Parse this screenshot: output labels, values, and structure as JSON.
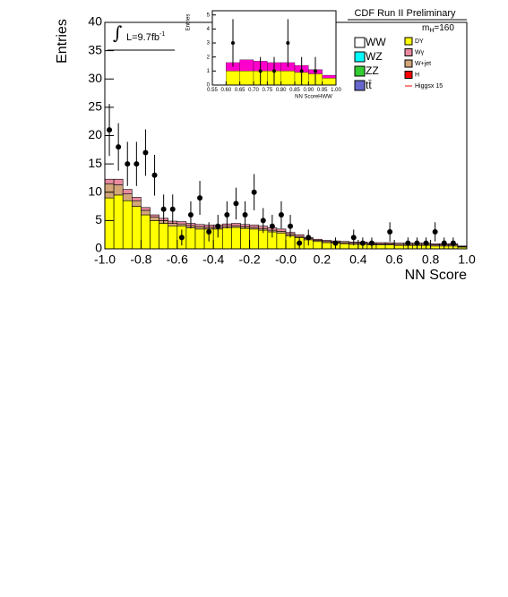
{
  "chart_data": [
    {
      "type": "histogram",
      "title": "CDF Run II Preliminary",
      "xlabel": "NN Score",
      "ylabel": "Entries",
      "lumi": {
        "text": "L=9.7fb",
        "sup": "-1"
      },
      "mass": {
        "text": "m",
        "sub": "H",
        "rest": "=160"
      },
      "bins": [
        -1,
        -0.95,
        -0.9,
        -0.85,
        -0.8,
        -0.75,
        -0.7,
        -0.65,
        -0.6,
        -0.55,
        -0.5,
        -0.45,
        -0.4,
        -0.35,
        -0.3,
        -0.25,
        -0.2,
        -0.15,
        -0.1,
        -0.05,
        0,
        0.05,
        0.1,
        0.15,
        0.2,
        0.25,
        0.3,
        0.35,
        0.4,
        0.45,
        0.5,
        0.55,
        0.6,
        0.65,
        0.7,
        0.75,
        0.8,
        0.85,
        0.9,
        0.95,
        1
      ],
      "series": [
        {
          "name": "DY",
          "color": "#ffff00",
          "values": [
            9,
            9.5,
            8.5,
            7.5,
            6,
            5,
            4.5,
            4,
            4,
            3.7,
            3.5,
            3.5,
            3.5,
            3.7,
            3.8,
            3.6,
            3.5,
            3.3,
            3,
            2.8,
            2.3,
            2,
            1.6,
            1.3,
            1.1,
            1,
            0.9,
            0.8,
            0.8,
            0.7,
            0.7,
            0.7,
            0.6,
            0.6,
            0.6,
            0.6,
            0.5,
            0.5,
            0.5,
            0.3
          ]
        },
        {
          "name": "W+jet",
          "color": "#d2a679",
          "values": [
            2.5,
            1.8,
            1.2,
            1,
            0.8,
            0.6,
            0.5,
            0.5,
            0.4,
            0.4,
            0.4,
            0.3,
            0.3,
            0.3,
            0.3,
            0.3,
            0.3,
            0.3,
            0.3,
            0.3,
            0.3,
            0.2,
            0.2,
            0.2,
            0.2,
            0.2,
            0.2,
            0.2,
            0.2,
            0.2,
            0.2,
            0.2,
            0.2,
            0.2,
            0.2,
            0.2,
            0.2,
            0.2,
            0.2,
            0.1
          ]
        },
        {
          "name": "Wγ",
          "color": "#e88aa0",
          "values": [
            0.8,
            1,
            0.8,
            0.6,
            0.5,
            0.4,
            0.4,
            0.4,
            0.4,
            0.4,
            0.4,
            0.4,
            0.4,
            0.4,
            0.4,
            0.4,
            0.4,
            0.4,
            0.4,
            0.4,
            0.3,
            0.3,
            0.2,
            0.2,
            0.2,
            0.2,
            0.2,
            0.2,
            0.2,
            0.2,
            0.2,
            0.2,
            0.2,
            0.2,
            0.2,
            0.2,
            0.2,
            0.2,
            0.2,
            0.1
          ]
        }
      ],
      "legend_extra": [
        {
          "name": "WW",
          "color": "#ffffff"
        },
        {
          "name": "WZ",
          "color": "#00ffff"
        },
        {
          "name": "ZZ",
          "color": "#33cc33"
        },
        {
          "name": "tt̄",
          "color": "#6666cc"
        },
        {
          "name": "H",
          "color": "#ff0000"
        },
        {
          "name": "Higgsx 15",
          "color": "#ff0000"
        }
      ],
      "points": {
        "x": [
          -0.975,
          -0.925,
          -0.875,
          -0.825,
          -0.775,
          -0.725,
          -0.675,
          -0.625,
          -0.575,
          -0.525,
          -0.475,
          -0.425,
          -0.375,
          -0.325,
          -0.275,
          -0.225,
          -0.175,
          -0.125,
          -0.075,
          -0.025,
          0.025,
          0.075,
          0.125,
          0.275,
          0.375,
          0.425,
          0.475,
          0.575,
          0.675,
          0.725,
          0.775,
          0.825,
          0.875,
          0.925
        ],
        "values": [
          21,
          18,
          15,
          15,
          17,
          13,
          7,
          7,
          2,
          6,
          9,
          3,
          4,
          6,
          8,
          6,
          10,
          5,
          4,
          6,
          4,
          1,
          2,
          1,
          2,
          1,
          1,
          3,
          1,
          1,
          1,
          3,
          1,
          1
        ],
        "errors": [
          4.6,
          4.2,
          3.9,
          3.9,
          4.1,
          3.6,
          2.6,
          2.6,
          1.4,
          2.4,
          3,
          1.7,
          2,
          2.4,
          2.8,
          2.4,
          3.2,
          2.2,
          2,
          2.4,
          2,
          1,
          1.4,
          1,
          1.4,
          1,
          1,
          1.7,
          1,
          1,
          1,
          1.7,
          1,
          1
        ]
      },
      "xlim": [
        -1,
        1
      ],
      "ylim": [
        0,
        40
      ],
      "xticks": [
        {
          "value": -1,
          "label": "-1.0"
        },
        {
          "value": -0.8,
          "label": "-0.8"
        },
        {
          "value": -0.6,
          "label": "-0.6"
        },
        {
          "value": -0.4,
          "label": "-0.4"
        },
        {
          "value": -0.2,
          "label": "-0.2"
        },
        {
          "value": 0,
          "label": "-0.0"
        },
        {
          "value": 0.2,
          "label": "0.2"
        },
        {
          "value": 0.4,
          "label": "0.4"
        },
        {
          "value": 0.6,
          "label": "0.6"
        },
        {
          "value": 0.8,
          "label": "0.8"
        },
        {
          "value": 1,
          "label": "1.0"
        }
      ],
      "yticks": [
        0,
        5,
        10,
        15,
        20,
        25,
        30,
        35,
        40
      ]
    },
    {
      "type": "histogram",
      "xlabel": "NN ScoreHWW",
      "ylabel": "Entries",
      "bins": [
        0.55,
        0.6,
        0.65,
        0.7,
        0.75,
        0.8,
        0.85,
        0.9,
        0.95,
        1
      ],
      "series": [
        {
          "name": "DY",
          "color": "#ffff00",
          "values": [
            0,
            1,
            1,
            1,
            1,
            1,
            0.9,
            0.8,
            0.5
          ]
        },
        {
          "name": "Wγ",
          "color": "#ff00cc",
          "values": [
            0,
            0.6,
            0.8,
            0.7,
            0.6,
            0.6,
            0.5,
            0.3,
            0.2
          ]
        }
      ],
      "points": {
        "x": [
          0.625,
          0.725,
          0.775,
          0.825,
          0.875,
          0.925
        ],
        "values": [
          3,
          1,
          1,
          3,
          1,
          1
        ],
        "errors": [
          1.7,
          1,
          1,
          1.7,
          1,
          1
        ]
      },
      "xlim": [
        0.55,
        1
      ],
      "ylim": [
        0,
        5.3
      ],
      "xticks": [
        0.55,
        {
          "value": 0.6,
          "label": "0.60"
        },
        0.65,
        {
          "value": 0.7,
          "label": "0.70"
        },
        0.75,
        {
          "value": 0.8,
          "label": "0.80"
        },
        0.85,
        {
          "value": 0.9,
          "label": "0.90"
        },
        0.95,
        {
          "value": 1,
          "label": "1.00"
        }
      ],
      "yticks": [
        0,
        1,
        2,
        3,
        4,
        5
      ]
    }
  ]
}
